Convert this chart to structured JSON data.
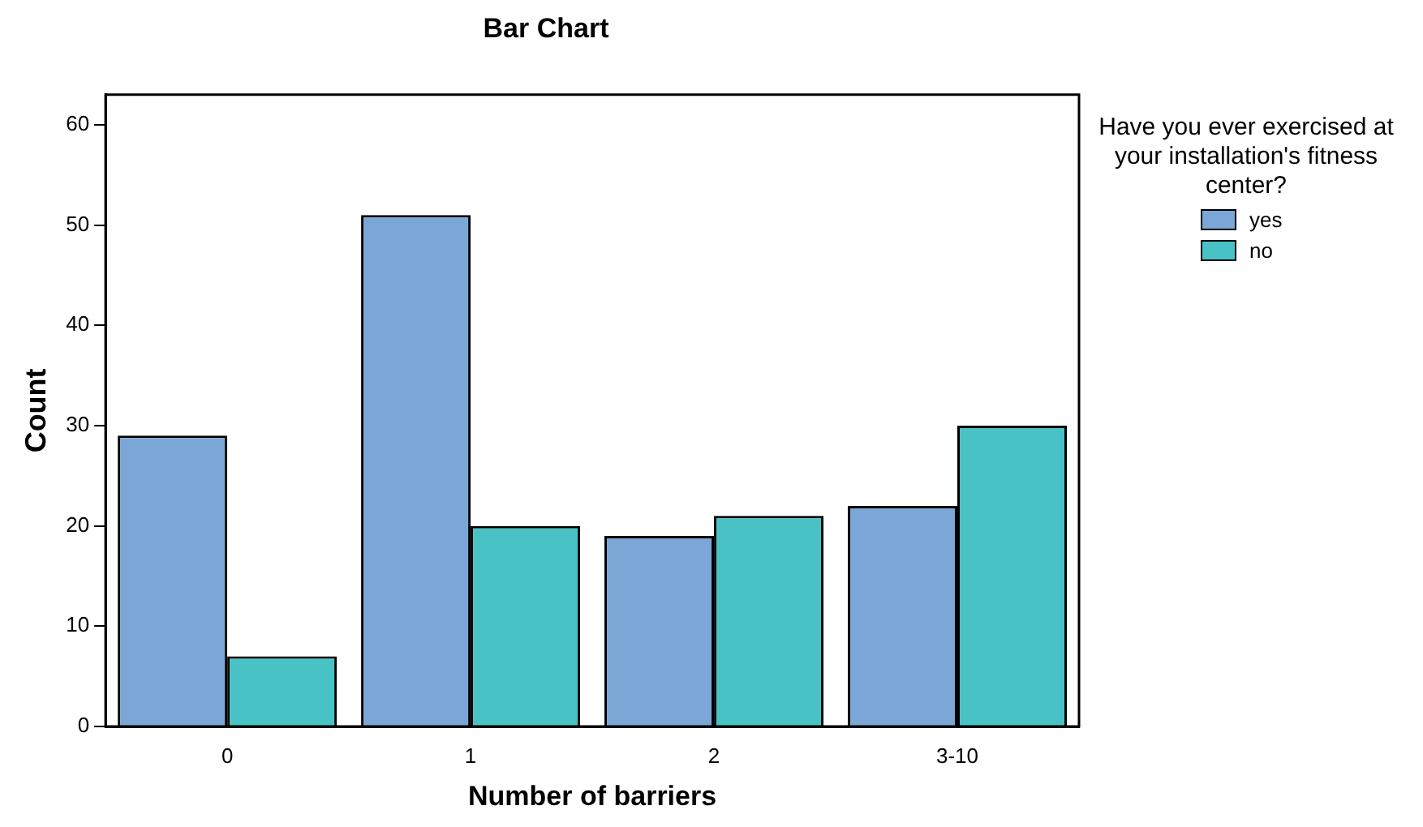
{
  "chart_data": {
    "type": "bar",
    "title": "Bar Chart",
    "xlabel": "Number of barriers",
    "ylabel": "Count",
    "legend_title": "Have you ever exercised at your installation's fitness center?",
    "categories": [
      "0",
      "1",
      "2",
      "3-10"
    ],
    "series": [
      {
        "name": "yes",
        "color": "#7ba7d6",
        "values": [
          29,
          51,
          19,
          22
        ]
      },
      {
        "name": "no",
        "color": "#48c2c5",
        "values": [
          7,
          20,
          21,
          30
        ]
      }
    ],
    "ylim": [
      0,
      63
    ],
    "yticks": [
      0,
      10,
      20,
      30,
      40,
      50,
      60
    ],
    "grid": false,
    "legend": "right"
  }
}
